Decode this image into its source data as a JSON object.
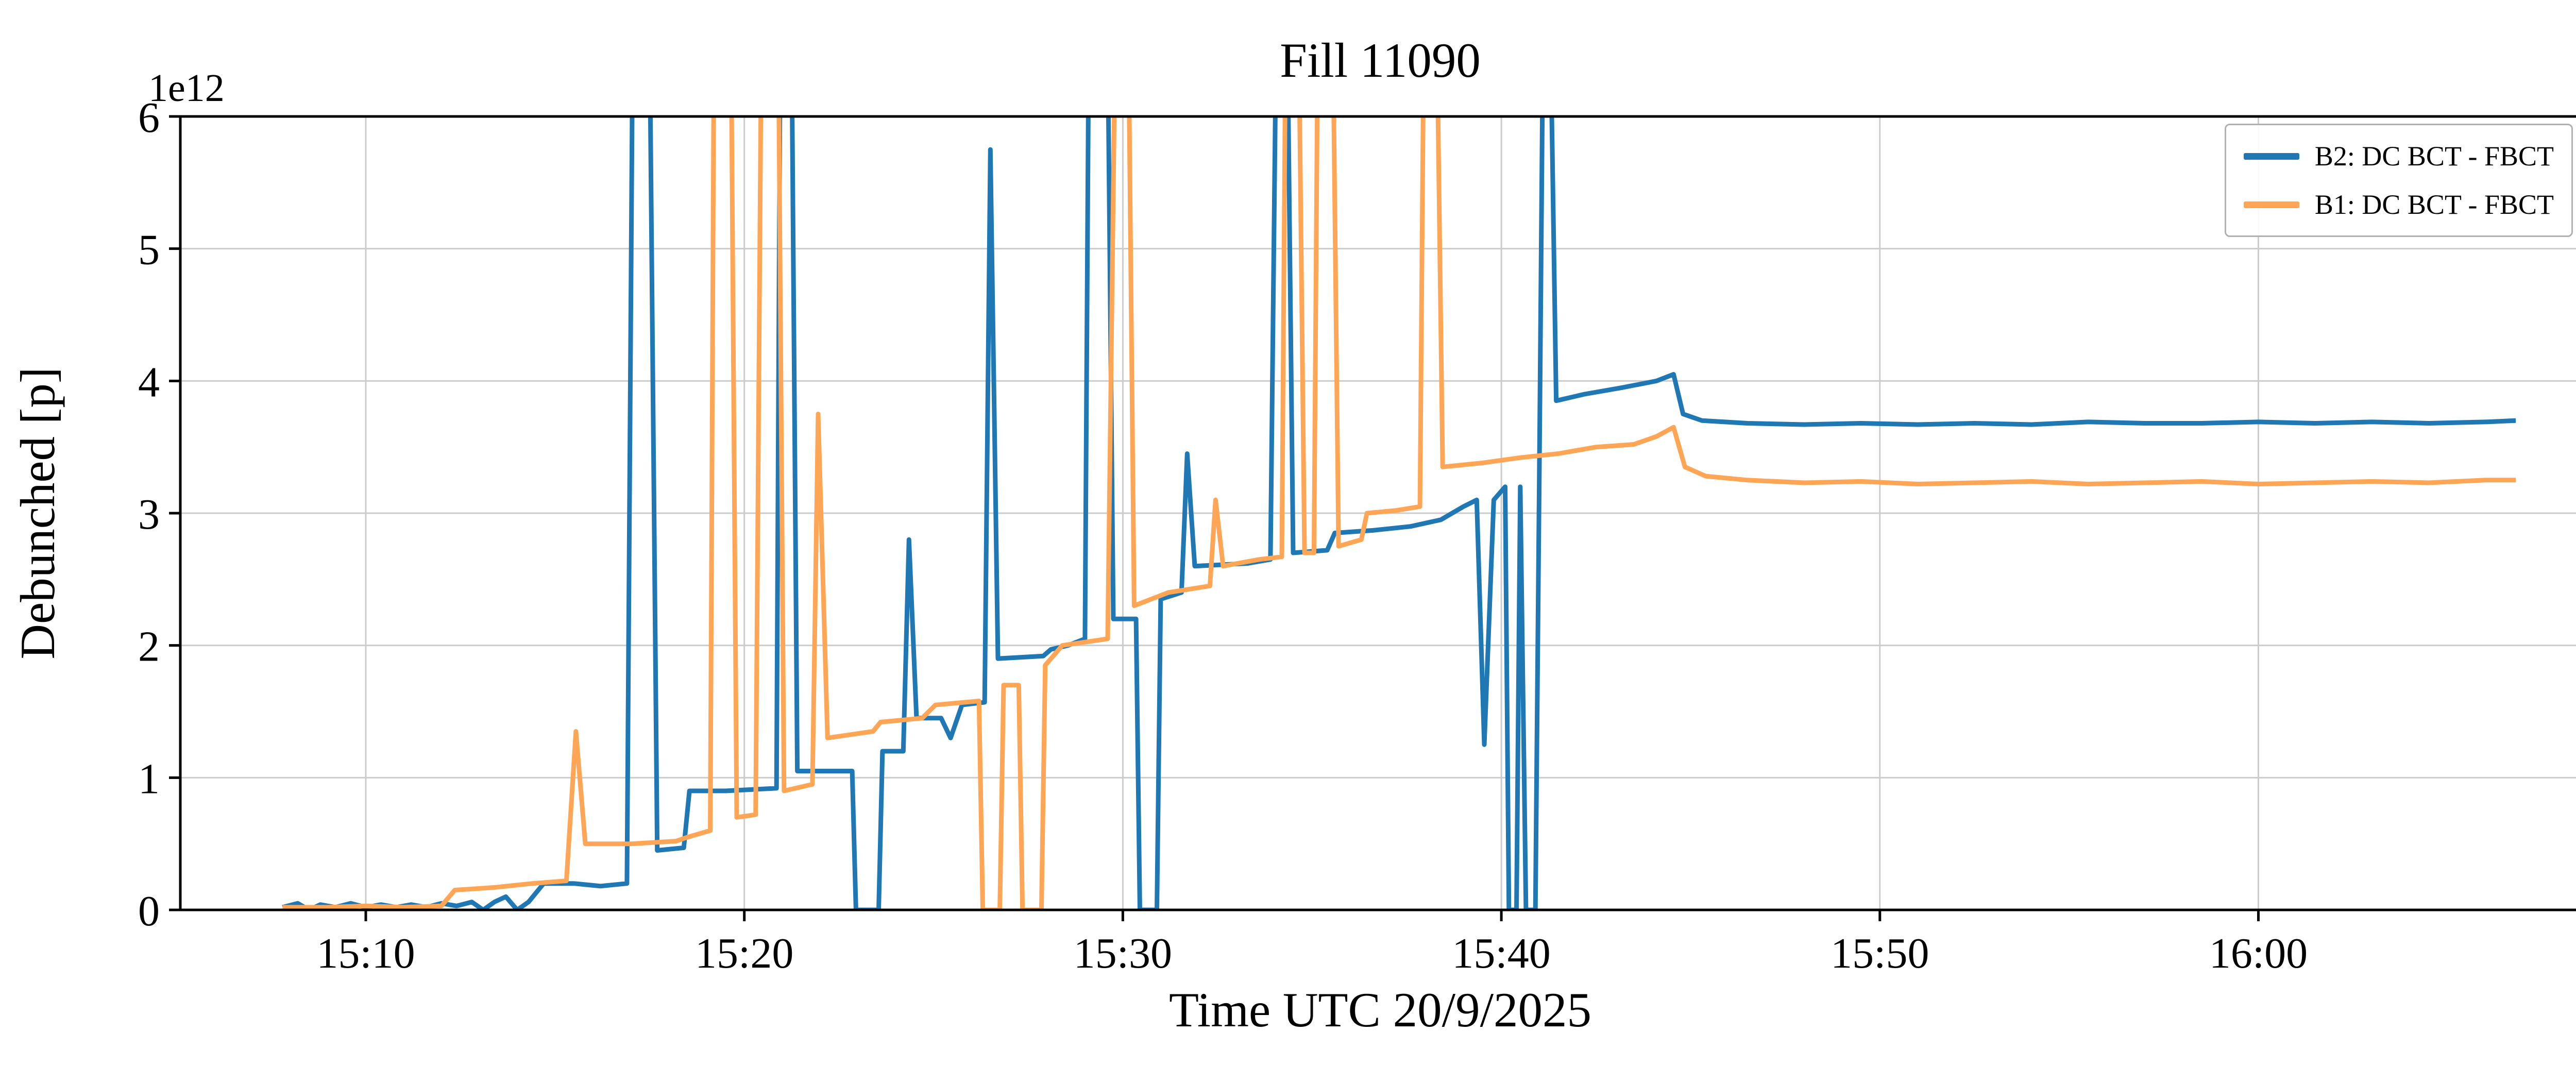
{
  "figure": {
    "title": "Fill 11090",
    "xlabel": "Time UTC 20/9/2025",
    "ylabel": "Debunched [p]",
    "offset_text": "1e12"
  },
  "chart_data": {
    "type": "line",
    "title": "Fill 11090",
    "xlabel": "Time UTC 20/9/2025",
    "ylabel": "Debunched [p]",
    "y_scale_factor": "1e12",
    "x_unit": "minutes after 15:00 UTC on 20/9/2025",
    "xlim": [
      5.1,
      68.5
    ],
    "ylim": [
      0,
      6
    ],
    "grid": true,
    "legend_position": "upper right",
    "background_color": "#ffffff",
    "grid_color": "#cccccc",
    "axes_color": "#000000",
    "note": "Values in units of 1e12 protons. Spike values recorded as 6.6 are off-scale injection spikes clipped at the ylim top (6e12).",
    "x_ticks": [
      {
        "t": 10,
        "label": "15:10"
      },
      {
        "t": 20,
        "label": "15:20"
      },
      {
        "t": 30,
        "label": "15:30"
      },
      {
        "t": 40,
        "label": "15:40"
      },
      {
        "t": 50,
        "label": "15:50"
      },
      {
        "t": 60,
        "label": "16:00"
      }
    ],
    "y_ticks": [
      {
        "v": 0,
        "label": "0"
      },
      {
        "v": 1,
        "label": "1"
      },
      {
        "v": 2,
        "label": "2"
      },
      {
        "v": 3,
        "label": "3"
      },
      {
        "v": 4,
        "label": "4"
      },
      {
        "v": 5,
        "label": "5"
      },
      {
        "v": 6,
        "label": "6"
      }
    ],
    "series": [
      {
        "name": "B2: DC BCT - FBCT",
        "color": "#1f77b4",
        "points": [
          [
            7.8,
            0.02
          ],
          [
            8.2,
            0.05
          ],
          [
            8.5,
            0.0
          ],
          [
            8.8,
            0.04
          ],
          [
            9.2,
            0.02
          ],
          [
            9.6,
            0.05
          ],
          [
            10.0,
            0.02
          ],
          [
            10.4,
            0.04
          ],
          [
            10.8,
            0.02
          ],
          [
            11.2,
            0.04
          ],
          [
            11.6,
            0.02
          ],
          [
            12.0,
            0.05
          ],
          [
            12.4,
            0.03
          ],
          [
            12.8,
            0.06
          ],
          [
            13.1,
            0.0
          ],
          [
            13.4,
            0.06
          ],
          [
            13.7,
            0.1
          ],
          [
            14.0,
            0.0
          ],
          [
            14.3,
            0.06
          ],
          [
            14.7,
            0.2
          ],
          [
            15.5,
            0.2
          ],
          [
            16.2,
            0.18
          ],
          [
            16.9,
            0.2
          ],
          [
            17.05,
            6.6
          ],
          [
            17.5,
            6.6
          ],
          [
            17.7,
            0.45
          ],
          [
            18.4,
            0.47
          ],
          [
            18.55,
            0.9
          ],
          [
            19.5,
            0.9
          ],
          [
            20.85,
            0.92
          ],
          [
            20.95,
            6.6
          ],
          [
            21.25,
            6.6
          ],
          [
            21.4,
            1.05
          ],
          [
            22.85,
            1.05
          ],
          [
            22.95,
            0.0
          ],
          [
            23.55,
            0.0
          ],
          [
            23.65,
            1.2
          ],
          [
            24.2,
            1.2
          ],
          [
            24.35,
            2.8
          ],
          [
            24.55,
            1.45
          ],
          [
            25.2,
            1.45
          ],
          [
            25.45,
            1.3
          ],
          [
            25.75,
            1.55
          ],
          [
            26.35,
            1.57
          ],
          [
            26.5,
            5.75
          ],
          [
            26.7,
            1.9
          ],
          [
            27.9,
            1.92
          ],
          [
            28.1,
            1.97
          ],
          [
            28.55,
            2.0
          ],
          [
            29.0,
            2.05
          ],
          [
            29.1,
            6.6
          ],
          [
            29.6,
            6.6
          ],
          [
            29.75,
            2.2
          ],
          [
            30.35,
            2.2
          ],
          [
            30.45,
            0.0
          ],
          [
            30.9,
            0.0
          ],
          [
            31.0,
            2.35
          ],
          [
            31.55,
            2.4
          ],
          [
            31.7,
            3.45
          ],
          [
            31.9,
            2.6
          ],
          [
            33.3,
            2.62
          ],
          [
            33.9,
            2.65
          ],
          [
            34.05,
            6.6
          ],
          [
            34.35,
            6.6
          ],
          [
            34.5,
            2.7
          ],
          [
            35.4,
            2.72
          ],
          [
            35.6,
            2.85
          ],
          [
            36.6,
            2.87
          ],
          [
            37.6,
            2.9
          ],
          [
            38.4,
            2.95
          ],
          [
            39.0,
            3.05
          ],
          [
            39.35,
            3.1
          ],
          [
            39.55,
            1.25
          ],
          [
            39.8,
            3.1
          ],
          [
            40.1,
            3.2
          ],
          [
            40.2,
            0.0
          ],
          [
            40.4,
            0.0
          ],
          [
            40.5,
            3.2
          ],
          [
            40.65,
            0.0
          ],
          [
            40.9,
            0.0
          ],
          [
            41.0,
            3.2
          ],
          [
            41.1,
            6.6
          ],
          [
            41.3,
            6.6
          ],
          [
            41.45,
            3.85
          ],
          [
            42.2,
            3.9
          ],
          [
            43.2,
            3.95
          ],
          [
            44.1,
            4.0
          ],
          [
            44.55,
            4.05
          ],
          [
            44.8,
            3.75
          ],
          [
            45.3,
            3.7
          ],
          [
            46.5,
            3.68
          ],
          [
            48.0,
            3.67
          ],
          [
            49.5,
            3.68
          ],
          [
            51.0,
            3.67
          ],
          [
            52.5,
            3.68
          ],
          [
            54.0,
            3.67
          ],
          [
            55.5,
            3.69
          ],
          [
            57.0,
            3.68
          ],
          [
            58.5,
            3.68
          ],
          [
            60.0,
            3.69
          ],
          [
            61.5,
            3.68
          ],
          [
            63.0,
            3.69
          ],
          [
            64.5,
            3.68
          ],
          [
            66.0,
            3.69
          ],
          [
            66.8,
            3.7
          ]
        ]
      },
      {
        "name": "B1: DC BCT - FBCT",
        "color": "#ffa556",
        "points": [
          [
            7.8,
            0.02
          ],
          [
            9.0,
            0.02
          ],
          [
            10.0,
            0.03
          ],
          [
            11.0,
            0.02
          ],
          [
            12.0,
            0.03
          ],
          [
            12.35,
            0.15
          ],
          [
            13.4,
            0.17
          ],
          [
            14.4,
            0.2
          ],
          [
            15.3,
            0.22
          ],
          [
            15.55,
            1.35
          ],
          [
            15.8,
            0.5
          ],
          [
            17.0,
            0.5
          ],
          [
            18.2,
            0.52
          ],
          [
            18.5,
            0.55
          ],
          [
            19.1,
            0.6
          ],
          [
            19.2,
            6.6
          ],
          [
            19.65,
            6.6
          ],
          [
            19.8,
            0.7
          ],
          [
            20.3,
            0.72
          ],
          [
            20.45,
            6.6
          ],
          [
            20.9,
            6.6
          ],
          [
            21.05,
            0.9
          ],
          [
            21.8,
            0.95
          ],
          [
            21.95,
            3.75
          ],
          [
            22.2,
            1.3
          ],
          [
            23.4,
            1.35
          ],
          [
            23.6,
            1.42
          ],
          [
            24.7,
            1.45
          ],
          [
            25.05,
            1.55
          ],
          [
            26.2,
            1.58
          ],
          [
            26.3,
            0.0
          ],
          [
            26.75,
            0.0
          ],
          [
            26.85,
            1.7
          ],
          [
            27.25,
            1.7
          ],
          [
            27.35,
            0.0
          ],
          [
            27.85,
            0.0
          ],
          [
            27.95,
            1.85
          ],
          [
            28.4,
            2.0
          ],
          [
            29.6,
            2.05
          ],
          [
            29.8,
            6.6
          ],
          [
            30.15,
            6.6
          ],
          [
            30.3,
            2.3
          ],
          [
            31.2,
            2.4
          ],
          [
            32.3,
            2.45
          ],
          [
            32.45,
            3.1
          ],
          [
            32.65,
            2.6
          ],
          [
            33.6,
            2.65
          ],
          [
            34.2,
            2.67
          ],
          [
            34.3,
            6.6
          ],
          [
            34.65,
            6.6
          ],
          [
            34.8,
            2.7
          ],
          [
            35.05,
            2.7
          ],
          [
            35.15,
            6.6
          ],
          [
            35.55,
            6.6
          ],
          [
            35.7,
            2.75
          ],
          [
            36.3,
            2.8
          ],
          [
            36.45,
            3.0
          ],
          [
            37.2,
            3.02
          ],
          [
            37.85,
            3.05
          ],
          [
            37.95,
            6.6
          ],
          [
            38.3,
            6.6
          ],
          [
            38.45,
            3.35
          ],
          [
            39.5,
            3.38
          ],
          [
            40.5,
            3.42
          ],
          [
            41.5,
            3.45
          ],
          [
            42.5,
            3.5
          ],
          [
            43.5,
            3.52
          ],
          [
            44.1,
            3.58
          ],
          [
            44.55,
            3.65
          ],
          [
            44.85,
            3.35
          ],
          [
            45.4,
            3.28
          ],
          [
            46.5,
            3.25
          ],
          [
            48.0,
            3.23
          ],
          [
            49.5,
            3.24
          ],
          [
            51.0,
            3.22
          ],
          [
            52.5,
            3.23
          ],
          [
            54.0,
            3.24
          ],
          [
            55.5,
            3.22
          ],
          [
            57.0,
            3.23
          ],
          [
            58.5,
            3.24
          ],
          [
            60.0,
            3.22
          ],
          [
            61.5,
            3.23
          ],
          [
            63.0,
            3.24
          ],
          [
            64.5,
            3.23
          ],
          [
            66.0,
            3.25
          ],
          [
            66.8,
            3.25
          ]
        ]
      }
    ]
  }
}
